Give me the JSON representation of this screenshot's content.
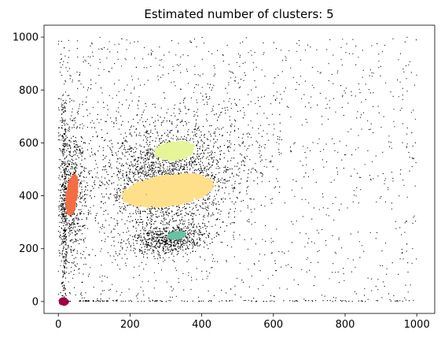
{
  "chart_data": {
    "type": "scatter",
    "title": "Estimated number of clusters: 5",
    "xlabel": "",
    "ylabel": "",
    "xlim": [
      -40,
      1050
    ],
    "ylim": [
      -45,
      1045
    ],
    "xticks": [
      0,
      200,
      400,
      600,
      800,
      1000
    ],
    "yticks": [
      0,
      200,
      400,
      600,
      800,
      1000
    ],
    "xtick_labels": [
      "0",
      "200",
      "400",
      "600",
      "800",
      "1000"
    ],
    "ytick_labels": [
      "0",
      "200",
      "400",
      "600",
      "800",
      "1000"
    ],
    "grid": false,
    "legend": "none",
    "noise": {
      "color": "#000000",
      "label": "noise"
    },
    "clusters": [
      {
        "id": 0,
        "color": "#9e0142",
        "center": [
          15,
          0
        ],
        "spread": [
          8,
          7
        ],
        "angle": 0
      },
      {
        "id": 1,
        "color": "#f46d43",
        "center": [
          38,
          405
        ],
        "spread": [
          12,
          75
        ],
        "angle": -5
      },
      {
        "id": 2,
        "color": "#fee08b",
        "center": [
          305,
          420
        ],
        "spread": [
          128,
          55
        ],
        "angle": 12
      },
      {
        "id": 3,
        "color": "#e6f598",
        "center": [
          325,
          570
        ],
        "spread": [
          55,
          30
        ],
        "angle": 12
      },
      {
        "id": 4,
        "color": "#66c2a5",
        "center": [
          330,
          250
        ],
        "spread": [
          22,
          9
        ],
        "angle": 10
      }
    ]
  }
}
